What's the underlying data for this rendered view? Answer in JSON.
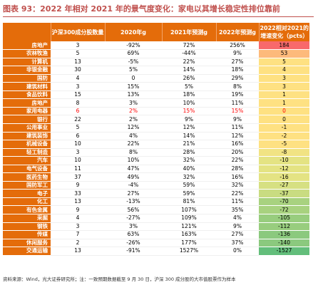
{
  "title": "图表 93：2022 年相对 2021 年的景气度变化：家电以其增长稳定性排位靠前",
  "headers": [
    "",
    "沪深300成分股数量",
    "2020年g",
    "2021年预测g",
    "2022年预测g",
    "2022相对2021的增速变化（pcts）"
  ],
  "rows": [
    {
      "industry": "房地产",
      "count": "3",
      "g2020": "-92%",
      "g2021": "72%",
      "g2022": "256%",
      "change": "184",
      "color": "#f8696b"
    },
    {
      "industry": "农林牧渔",
      "count": "5",
      "g2020": "69%",
      "g2021": "-44%",
      "g2022": "9%",
      "change": "53",
      "color": "#fdba7b"
    },
    {
      "industry": "计算机",
      "count": "13",
      "g2020": "-5%",
      "g2021": "22%",
      "g2022": "27%",
      "change": "5",
      "color": "#fee182"
    },
    {
      "industry": "非银金融",
      "count": "30",
      "g2020": "5%",
      "g2021": "14%",
      "g2022": "18%",
      "change": "4",
      "color": "#fee182"
    },
    {
      "industry": "国防",
      "count": "4",
      "g2020": "0",
      "g2021": "26%",
      "g2022": "29%",
      "change": "3",
      "color": "#fee182"
    },
    {
      "industry": "建筑材料",
      "count": "3",
      "g2020": "15%",
      "g2021": "5%",
      "g2022": "8%",
      "change": "3",
      "color": "#fee182"
    },
    {
      "industry": "食品饮料",
      "count": "15",
      "g2020": "13%",
      "g2021": "18%",
      "g2022": "19%",
      "change": "1",
      "color": "#fee182"
    },
    {
      "industry": "房地产",
      "count": "8",
      "g2020": "3%",
      "g2021": "10%",
      "g2022": "11%",
      "change": "1",
      "color": "#fee182"
    },
    {
      "industry": "家用电器",
      "count": "6",
      "g2020": "2%",
      "g2021": "15%",
      "g2022": "15%",
      "change": "0",
      "color": "#fee182",
      "hl": true
    },
    {
      "industry": "银行",
      "count": "22",
      "g2020": "2%",
      "g2021": "9%",
      "g2022": "9%",
      "change": "0",
      "color": "#fee182"
    },
    {
      "industry": "公用事业",
      "count": "5",
      "g2020": "12%",
      "g2021": "12%",
      "g2022": "11%",
      "change": "-1",
      "color": "#fee182"
    },
    {
      "industry": "建筑装饰",
      "count": "6",
      "g2020": "4%",
      "g2021": "14%",
      "g2022": "12%",
      "change": "-2",
      "color": "#fee182"
    },
    {
      "industry": "机械设备",
      "count": "10",
      "g2020": "22%",
      "g2021": "21%",
      "g2022": "16%",
      "change": "-5",
      "color": "#fee182"
    },
    {
      "industry": "轻工制造",
      "count": "3",
      "g2020": "8%",
      "g2021": "28%",
      "g2022": "20%",
      "change": "-8",
      "color": "#f1e383"
    },
    {
      "industry": "汽车",
      "count": "10",
      "g2020": "10%",
      "g2021": "32%",
      "g2022": "22%",
      "change": "-10",
      "color": "#e4e383"
    },
    {
      "industry": "电气设备",
      "count": "11",
      "g2020": "47%",
      "g2021": "40%",
      "g2022": "28%",
      "change": "-12",
      "color": "#e4e383"
    },
    {
      "industry": "医药生物",
      "count": "37",
      "g2020": "49%",
      "g2021": "32%",
      "g2022": "16%",
      "change": "-16",
      "color": "#e4e383"
    },
    {
      "industry": "国防军工",
      "count": "9",
      "g2020": "-4%",
      "g2021": "59%",
      "g2022": "32%",
      "change": "-27",
      "color": "#d6e082"
    },
    {
      "industry": "电子",
      "count": "33",
      "g2020": "27%",
      "g2021": "59%",
      "g2022": "22%",
      "change": "-37",
      "color": "#c9dc81"
    },
    {
      "industry": "化工",
      "count": "13",
      "g2020": "-13%",
      "g2021": "81%",
      "g2022": "11%",
      "change": "-70",
      "color": "#a8d27f"
    },
    {
      "industry": "有色金属",
      "count": "9",
      "g2020": "56%",
      "g2021": "107%",
      "g2022": "35%",
      "change": "-72",
      "color": "#a8d27f"
    },
    {
      "industry": "采掘",
      "count": "4",
      "g2020": "-27%",
      "g2021": "109%",
      "g2022": "4%",
      "change": "-105",
      "color": "#98cd7e"
    },
    {
      "industry": "钢铁",
      "count": "3",
      "g2020": "3%",
      "g2021": "121%",
      "g2022": "9%",
      "change": "-112",
      "color": "#98cd7e"
    },
    {
      "industry": "传媒",
      "count": "7",
      "g2020": "63%",
      "g2021": "163%",
      "g2022": "27%",
      "change": "-136",
      "color": "#8bc97e"
    },
    {
      "industry": "休闲服务",
      "count": "2",
      "g2020": "-26%",
      "g2021": "177%",
      "g2022": "37%",
      "change": "-140",
      "color": "#8bc97e"
    },
    {
      "industry": "交通运输",
      "count": "13",
      "g2020": "-91%",
      "g2021": "1527%",
      "g2022": "0%",
      "change": "-1527",
      "color": "#63be7b"
    }
  ],
  "footer": "资料来源：Wind，光大证券研究所；注：一致预期数据截至 9 月 30 日，沪深 300 成分股的大市值股票作为样本"
}
